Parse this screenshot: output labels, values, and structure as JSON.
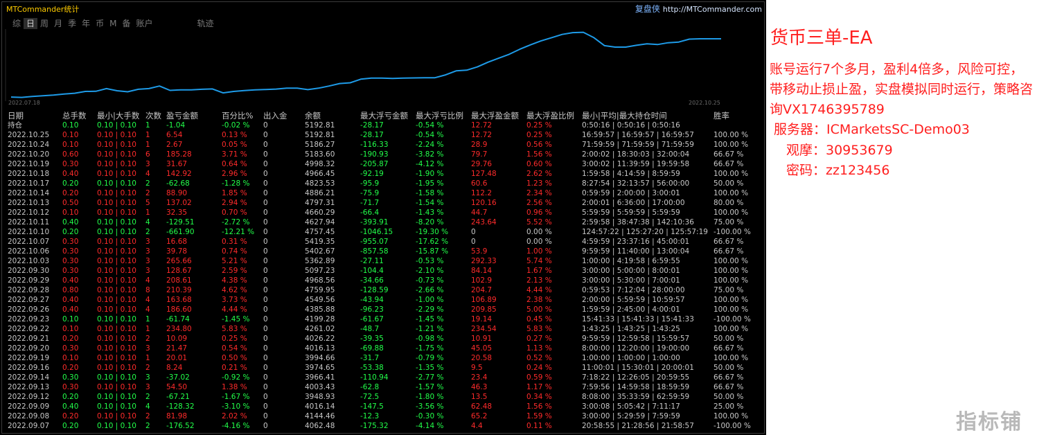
{
  "app": {
    "title": "MTCommander统计",
    "brand_name": "复盘侠",
    "brand_url": "http://MTCommander.com"
  },
  "tabs": [
    {
      "label": "综",
      "active": false
    },
    {
      "label": "日",
      "active": true
    },
    {
      "label": "周",
      "active": false
    },
    {
      "label": "月",
      "active": false
    },
    {
      "label": "季",
      "active": false
    },
    {
      "label": "年",
      "active": false
    },
    {
      "label": "币",
      "active": false
    },
    {
      "label": "M",
      "active": false
    },
    {
      "label": "备",
      "active": false
    },
    {
      "label": "账户",
      "active": false
    },
    {
      "label": "轨迹",
      "active": false
    }
  ],
  "chart_data": {
    "type": "line",
    "x_start_label": "2022.07.18",
    "x_end_label": "2022.10.25",
    "color": "#1e9be8",
    "values": [
      3775,
      3765,
      3790,
      3810,
      3830,
      3860,
      3880,
      3930,
      3935,
      4010,
      3950,
      3920,
      3990,
      4010,
      4080,
      3960,
      3975,
      3975,
      3990,
      4000,
      3890,
      3930,
      3955,
      3975,
      3985,
      3995,
      4020,
      4020,
      3980,
      4020,
      4080,
      4150,
      4170,
      4270,
      4300,
      4300,
      4290,
      4300,
      4305,
      4310,
      4310,
      4390,
      4500,
      4520,
      4610,
      4740,
      4850,
      4960,
      5100,
      5220,
      5330,
      5420,
      5510,
      5560,
      5570,
      5420,
      5200,
      5160,
      5160,
      5210,
      5250,
      5230,
      5280,
      5300,
      5380,
      5390,
      5390,
      5390
    ],
    "ylim": [
      3700,
      5620
    ]
  },
  "table": {
    "headers": [
      "日期",
      "总手数",
      "最小|大手数",
      "次数",
      "盈亏金额",
      "百分比%",
      "出入金",
      "余额",
      "最大浮亏金额",
      "最大浮亏比例",
      "最大浮盈金额",
      "最大浮盈比例",
      "最小|平均|最大持仓时间",
      "胜率"
    ],
    "rows": [
      {
        "date": "持仓",
        "lots": "0.10",
        "minmax": "0.10 | 0.10",
        "count": "1",
        "pnl": "-1.04",
        "pct": "-0.02 %",
        "flow": "0",
        "balance": "5192.81",
        "maxdd": "-28.17",
        "maxdd_pct": "-0.54 %",
        "maxfp": "12.72",
        "maxfp_pct": "0.25 %",
        "hold": "0:50:16 | 0:50:16 | 0:50:16",
        "win": "",
        "c": "neg"
      },
      {
        "date": "2022.10.25",
        "lots": "0.10",
        "minmax": "0.10 | 0.10",
        "count": "1",
        "pnl": "6.54",
        "pct": "0.13 %",
        "flow": "0",
        "balance": "5192.81",
        "maxdd": "-28.17",
        "maxdd_pct": "-0.54 %",
        "maxfp": "12.72",
        "maxfp_pct": "0.25 %",
        "hold": "16:59:57 | 16:59:57 | 16:59:57",
        "win": "100.00 %",
        "c": "pos"
      },
      {
        "date": "2022.10.24",
        "lots": "0.10",
        "minmax": "0.10 | 0.10",
        "count": "1",
        "pnl": "2.67",
        "pct": "0.05 %",
        "flow": "0",
        "balance": "5186.27",
        "maxdd": "-116.33",
        "maxdd_pct": "-2.24 %",
        "maxfp": "28.9",
        "maxfp_pct": "0.56 %",
        "hold": "71:59:59 | 71:59:59 | 71:59:59",
        "win": "100.00 %",
        "c": "pos"
      },
      {
        "date": "2022.10.20",
        "lots": "0.60",
        "minmax": "0.10 | 0.10",
        "count": "6",
        "pnl": "185.28",
        "pct": "3.71 %",
        "flow": "0",
        "balance": "5183.60",
        "maxdd": "-190.93",
        "maxdd_pct": "-3.82 %",
        "maxfp": "79.7",
        "maxfp_pct": "1.56 %",
        "hold": "2:00:02 | 18:30:03 | 32:00:04",
        "win": "66.67 %",
        "c": "pos"
      },
      {
        "date": "2022.10.19",
        "lots": "0.30",
        "minmax": "0.10 | 0.10",
        "count": "3",
        "pnl": "31.67",
        "pct": "0.64 %",
        "flow": "0",
        "balance": "4998.32",
        "maxdd": "-205.87",
        "maxdd_pct": "-4.12 %",
        "maxfp": "29.76",
        "maxfp_pct": "0.60 %",
        "hold": "3:00:02 | 11:39:59 | 19:59:58",
        "win": "66.67 %",
        "c": "pos"
      },
      {
        "date": "2022.10.18",
        "lots": "0.40",
        "minmax": "0.10 | 0.10",
        "count": "4",
        "pnl": "142.92",
        "pct": "2.96 %",
        "flow": "0",
        "balance": "4966.45",
        "maxdd": "-92.19",
        "maxdd_pct": "-1.90 %",
        "maxfp": "127.48",
        "maxfp_pct": "2.62 %",
        "hold": "1:59:58 | 4:14:59 | 8:59:59",
        "win": "100.00 %",
        "c": "pos"
      },
      {
        "date": "2022.10.17",
        "lots": "0.20",
        "minmax": "0.10 | 0.10",
        "count": "2",
        "pnl": "-62.68",
        "pct": "-1.28 %",
        "flow": "0",
        "balance": "4823.53",
        "maxdd": "-95.9",
        "maxdd_pct": "-1.95 %",
        "maxfp": "60.6",
        "maxfp_pct": "1.23 %",
        "hold": "8:27:54 | 32:13:57 | 56:00:00",
        "win": "50.00 %",
        "c": "neg"
      },
      {
        "date": "2022.10.14",
        "lots": "0.20",
        "minmax": "0.10 | 0.10",
        "count": "2",
        "pnl": "88.90",
        "pct": "1.85 %",
        "flow": "0",
        "balance": "4886.21",
        "maxdd": "-75.9",
        "maxdd_pct": "-1.58 %",
        "maxfp": "112.2",
        "maxfp_pct": "2.34 %",
        "hold": "0:59:59 | 2:00:00 | 3:00:01",
        "win": "100.00 %",
        "c": "pos"
      },
      {
        "date": "2022.10.13",
        "lots": "0.50",
        "minmax": "0.10 | 0.10",
        "count": "5",
        "pnl": "137.02",
        "pct": "2.94 %",
        "flow": "0",
        "balance": "4797.31",
        "maxdd": "-71.7",
        "maxdd_pct": "-1.54 %",
        "maxfp": "120.16",
        "maxfp_pct": "2.56 %",
        "hold": "2:00:01 | 6:36:00 | 17:00:00",
        "win": "80.00 %",
        "c": "pos"
      },
      {
        "date": "2022.10.12",
        "lots": "0.10",
        "minmax": "0.10 | 0.10",
        "count": "1",
        "pnl": "32.35",
        "pct": "0.70 %",
        "flow": "0",
        "balance": "4660.29",
        "maxdd": "-66.4",
        "maxdd_pct": "-1.43 %",
        "maxfp": "44.7",
        "maxfp_pct": "0.96 %",
        "hold": "5:59:59 | 5:59:59 | 5:59:59",
        "win": "100.00 %",
        "c": "pos"
      },
      {
        "date": "2022.10.11",
        "lots": "0.40",
        "minmax": "0.10 | 0.10",
        "count": "4",
        "pnl": "-129.51",
        "pct": "-2.72 %",
        "flow": "0",
        "balance": "4627.94",
        "maxdd": "-393.91",
        "maxdd_pct": "-8.20 %",
        "maxfp": "243.64",
        "maxfp_pct": "5.52 %",
        "hold": "2:59:58 | 38:47:38 | 142:10:36",
        "win": "75.00 %",
        "c": "neg"
      },
      {
        "date": "2022.10.10",
        "lots": "0.20",
        "minmax": "0.10 | 0.10",
        "count": "2",
        "pnl": "-661.90",
        "pct": "-12.21 %",
        "flow": "0",
        "balance": "4757.45",
        "maxdd": "-1046.15",
        "maxdd_pct": "-19.30 %",
        "maxfp": "0",
        "maxfp_pct": "0.00 %",
        "hold": "124:57:22 | 125:27:20 | 125:57:19",
        "win": "-100.00 %",
        "c": "neg"
      },
      {
        "date": "2022.10.07",
        "lots": "0.30",
        "minmax": "0.10 | 0.10",
        "count": "3",
        "pnl": "16.68",
        "pct": "0.31 %",
        "flow": "0",
        "balance": "5419.35",
        "maxdd": "-955.07",
        "maxdd_pct": "-17.62 %",
        "maxfp": "0",
        "maxfp_pct": "0.00 %",
        "hold": "4:59:59 | 23:37:16 | 45:00:01",
        "win": "66.67 %",
        "c": "pos"
      },
      {
        "date": "2022.10.06",
        "lots": "0.30",
        "minmax": "0.10 | 0.10",
        "count": "3",
        "pnl": "39.78",
        "pct": "0.74 %",
        "flow": "0",
        "balance": "5402.67",
        "maxdd": "-857.58",
        "maxdd_pct": "-15.87 %",
        "maxfp": "53.9",
        "maxfp_pct": "1.00 %",
        "hold": "9:59:59 | 11:40:00 | 13:00:04",
        "win": "66.67 %",
        "c": "pos"
      },
      {
        "date": "2022.10.03",
        "lots": "0.30",
        "minmax": "0.10 | 0.10",
        "count": "3",
        "pnl": "265.66",
        "pct": "5.21 %",
        "flow": "0",
        "balance": "5362.89",
        "maxdd": "-27.11",
        "maxdd_pct": "-0.53 %",
        "maxfp": "292.33",
        "maxfp_pct": "5.74 %",
        "hold": "1:00:00 | 4:19:58 | 6:59:55",
        "win": "100.00 %",
        "c": "pos"
      },
      {
        "date": "2022.09.30",
        "lots": "0.30",
        "minmax": "0.10 | 0.10",
        "count": "3",
        "pnl": "128.67",
        "pct": "2.59 %",
        "flow": "0",
        "balance": "5097.23",
        "maxdd": "-104.4",
        "maxdd_pct": "-2.10 %",
        "maxfp": "84.14",
        "maxfp_pct": "1.67 %",
        "hold": "3:00:00 | 5:00:00 | 8:00:01",
        "win": "100.00 %",
        "c": "pos"
      },
      {
        "date": "2022.09.29",
        "lots": "0.40",
        "minmax": "0.10 | 0.10",
        "count": "4",
        "pnl": "208.61",
        "pct": "4.38 %",
        "flow": "0",
        "balance": "4968.56",
        "maxdd": "-34.66",
        "maxdd_pct": "-0.73 %",
        "maxfp": "102.9",
        "maxfp_pct": "2.13 %",
        "hold": "3:00:00 | 5:30:00 | 7:00:01",
        "win": "100.00 %",
        "c": "pos"
      },
      {
        "date": "2022.09.28",
        "lots": "0.80",
        "minmax": "0.10 | 0.10",
        "count": "8",
        "pnl": "210.39",
        "pct": "4.62 %",
        "flow": "0",
        "balance": "4759.95",
        "maxdd": "-128.59",
        "maxdd_pct": "-2.66 %",
        "maxfp": "204.7",
        "maxfp_pct": "4.44 %",
        "hold": "0:59:53 | 7:12:04 | 28:00:00",
        "win": "75.00 %",
        "c": "pos"
      },
      {
        "date": "2022.09.27",
        "lots": "0.40",
        "minmax": "0.10 | 0.10",
        "count": "4",
        "pnl": "163.68",
        "pct": "3.73 %",
        "flow": "0",
        "balance": "4549.56",
        "maxdd": "-43.94",
        "maxdd_pct": "-1.00 %",
        "maxfp": "106.89",
        "maxfp_pct": "2.38 %",
        "hold": "2:00:00 | 5:59:59 | 10:59:57",
        "win": "100.00 %",
        "c": "pos"
      },
      {
        "date": "2022.09.26",
        "lots": "0.40",
        "minmax": "0.10 | 0.10",
        "count": "4",
        "pnl": "186.60",
        "pct": "4.44 %",
        "flow": "0",
        "balance": "4385.88",
        "maxdd": "-96.23",
        "maxdd_pct": "-2.29 %",
        "maxfp": "209.85",
        "maxfp_pct": "5.00 %",
        "hold": "1:59:59 | 2:45:00 | 4:00:01",
        "win": "100.00 %",
        "c": "pos"
      },
      {
        "date": "2022.09.23",
        "lots": "0.10",
        "minmax": "0.10 | 0.10",
        "count": "1",
        "pnl": "-61.74",
        "pct": "-1.45 %",
        "flow": "0",
        "balance": "4199.28",
        "maxdd": "-61.67",
        "maxdd_pct": "-1.45 %",
        "maxfp": "19.14",
        "maxfp_pct": "0.45 %",
        "hold": "15:41:33 | 15:41:33 | 15:41:33",
        "win": "-100.00 %",
        "c": "neg"
      },
      {
        "date": "2022.09.22",
        "lots": "0.10",
        "minmax": "0.10 | 0.10",
        "count": "1",
        "pnl": "234.80",
        "pct": "5.83 %",
        "flow": "0",
        "balance": "4261.02",
        "maxdd": "-48.7",
        "maxdd_pct": "-1.21 %",
        "maxfp": "234.54",
        "maxfp_pct": "5.83 %",
        "hold": "1:43:25 | 1:43:25 | 1:43:25",
        "win": "100.00 %",
        "c": "pos"
      },
      {
        "date": "2022.09.21",
        "lots": "0.20",
        "minmax": "0.10 | 0.10",
        "count": "2",
        "pnl": "10.09",
        "pct": "0.25 %",
        "flow": "0",
        "balance": "4026.22",
        "maxdd": "-39.35",
        "maxdd_pct": "-0.98 %",
        "maxfp": "10.91",
        "maxfp_pct": "0.27 %",
        "hold": "9:59:59 | 12:59:58 | 15:59:57",
        "win": "50.00 %",
        "c": "pos"
      },
      {
        "date": "2022.09.20",
        "lots": "0.30",
        "minmax": "0.10 | 0.10",
        "count": "3",
        "pnl": "21.47",
        "pct": "0.54 %",
        "flow": "0",
        "balance": "4016.13",
        "maxdd": "-69.88",
        "maxdd_pct": "-1.75 %",
        "maxfp": "45.05",
        "maxfp_pct": "1.13 %",
        "hold": "8:00:00 | 12:20:00 | 19:00:00",
        "win": "66.67 %",
        "c": "pos"
      },
      {
        "date": "2022.09.19",
        "lots": "0.10",
        "minmax": "0.10 | 0.10",
        "count": "1",
        "pnl": "20.01",
        "pct": "0.50 %",
        "flow": "0",
        "balance": "3994.66",
        "maxdd": "-31.7",
        "maxdd_pct": "-0.79 %",
        "maxfp": "20.58",
        "maxfp_pct": "0.52 %",
        "hold": "1:00:00 | 1:00:00 | 1:00:00",
        "win": "100.00 %",
        "c": "pos"
      },
      {
        "date": "2022.09.16",
        "lots": "0.20",
        "minmax": "0.10 | 0.10",
        "count": "2",
        "pnl": "8.24",
        "pct": "0.21 %",
        "flow": "0",
        "balance": "3974.65",
        "maxdd": "-53.38",
        "maxdd_pct": "-1.35 %",
        "maxfp": "9.5",
        "maxfp_pct": "0.24 %",
        "hold": "11:00:01 | 15:30:01 | 20:00:01",
        "win": "50.00 %",
        "c": "pos"
      },
      {
        "date": "2022.09.14",
        "lots": "0.30",
        "minmax": "0.10 | 0.10",
        "count": "3",
        "pnl": "-37.02",
        "pct": "-0.92 %",
        "flow": "0",
        "balance": "3966.41",
        "maxdd": "-110.94",
        "maxdd_pct": "-2.77 %",
        "maxfp": "23.4",
        "maxfp_pct": "0.59 %",
        "hold": "7:18:22 | 12:26:05 | 20:59:55",
        "win": "66.67 %",
        "c": "neg"
      },
      {
        "date": "2022.09.13",
        "lots": "0.30",
        "minmax": "0.10 | 0.10",
        "count": "3",
        "pnl": "54.50",
        "pct": "1.38 %",
        "flow": "0",
        "balance": "4003.43",
        "maxdd": "-62.8",
        "maxdd_pct": "-1.57 %",
        "maxfp": "46.3",
        "maxfp_pct": "1.17 %",
        "hold": "7:59:56 | 14:59:58 | 18:59:59",
        "win": "66.67 %",
        "c": "pos"
      },
      {
        "date": "2022.09.12",
        "lots": "0.20",
        "minmax": "0.10 | 0.10",
        "count": "2",
        "pnl": "-67.21",
        "pct": "-1.67 %",
        "flow": "0",
        "balance": "3948.93",
        "maxdd": "-72.5",
        "maxdd_pct": "-1.80 %",
        "maxfp": "13.5",
        "maxfp_pct": "0.34 %",
        "hold": "8:08:00 | 35:33:59 | 62:59:59",
        "win": "50.00 %",
        "c": "neg"
      },
      {
        "date": "2022.09.09",
        "lots": "0.40",
        "minmax": "0.10 | 0.10",
        "count": "4",
        "pnl": "-128.32",
        "pct": "-3.10 %",
        "flow": "0",
        "balance": "4016.14",
        "maxdd": "-147.5",
        "maxdd_pct": "-3.56 %",
        "maxfp": "62.48",
        "maxfp_pct": "1.56 %",
        "hold": "3:00:08 | 5:05:42 | 7:11:17",
        "win": "25.00 %",
        "c": "neg"
      },
      {
        "date": "2022.09.08",
        "lots": "0.20",
        "minmax": "0.10 | 0.10",
        "count": "2",
        "pnl": "81.98",
        "pct": "2.02 %",
        "flow": "0",
        "balance": "4144.46",
        "maxdd": "-12.3",
        "maxdd_pct": "-0.30 %",
        "maxfp": "65.2",
        "maxfp_pct": "1.59 %",
        "hold": "3:00:00 | 5:29:59 | 7:59:59",
        "win": "100.00 %",
        "c": "pos"
      },
      {
        "date": "2022.09.07",
        "lots": "0.20",
        "minmax": "0.10 | 0.10",
        "count": "2",
        "pnl": "-176.52",
        "pct": "-4.16 %",
        "flow": "0",
        "balance": "4062.48",
        "maxdd": "-175.32",
        "maxdd_pct": "-4.14 %",
        "maxfp": "4.4",
        "maxfp_pct": "0.11 %",
        "hold": "20:58:55 | 21:28:56 | 21:58:57",
        "win": "-100.00 %",
        "c": "neg"
      }
    ]
  },
  "side": {
    "title": "货币三单-EA",
    "description": "账号运行7个多月，盈利4倍多，风险可控，带移动止损止盈，实盘模拟同时运行，策略咨询VX1746395789",
    "server": "服务器：ICMarketsSC-Demo03",
    "login": "观摩：30953679",
    "password": "密码：zz123456"
  },
  "watermark": "指标铺",
  "colors": {
    "profit": "#ff2b2b",
    "loss": "#22ff4a",
    "accent_red": "#ff1f1f",
    "line": "#1e9be8",
    "app_title": "#ffcc00"
  }
}
